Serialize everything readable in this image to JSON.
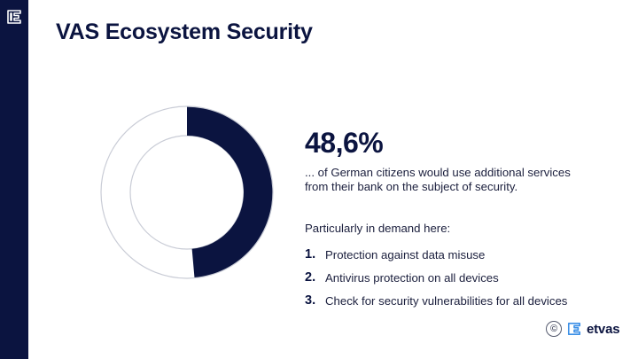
{
  "slide": {
    "title": "VAS Ecosystem Security"
  },
  "stat": {
    "value": "48,6%",
    "percent": 48.6,
    "description": "... of German citizens would use additional services from their bank on the subject of security."
  },
  "demand": {
    "heading": "Particularly in demand here:",
    "items": [
      {
        "number": "1.",
        "text": "Protection against data misuse"
      },
      {
        "number": "2.",
        "text": "Antivirus protection on all devices"
      },
      {
        "number": "3.",
        "text": "Check for security vulnerabilities for all devices"
      }
    ]
  },
  "footer": {
    "copyright_symbol": "©",
    "brand_name": "etvas"
  },
  "colors": {
    "navy": "#0b1440",
    "ring_outline": "#c9ccd6",
    "background": "#ffffff"
  },
  "icons": {
    "sidebar": "etvas-logo-icon",
    "footer_copyright": "copyright-icon",
    "footer_brand": "etvas-logo-icon"
  }
}
